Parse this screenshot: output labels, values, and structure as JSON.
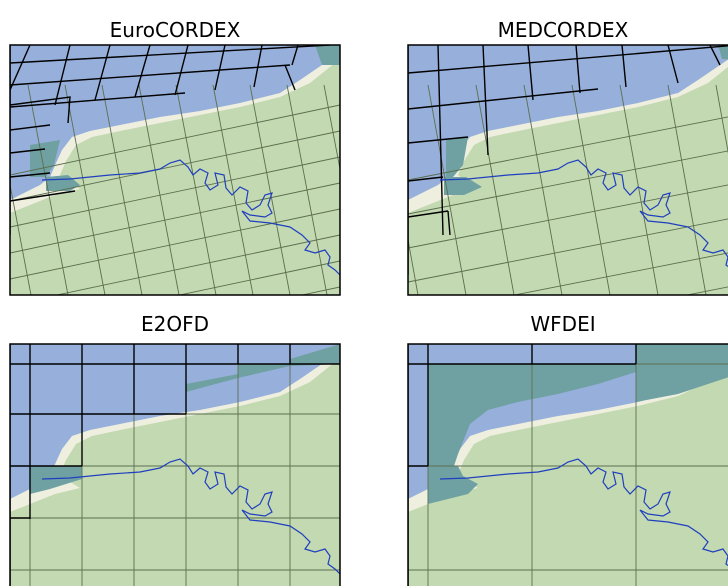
{
  "figure": {
    "panels": [
      {
        "key": "eurocordex",
        "title": "EuroCORDEX"
      },
      {
        "key": "medcordex",
        "title": "MEDCORDEX"
      },
      {
        "key": "e2ofd",
        "title": "E2OFD"
      },
      {
        "key": "wfdei",
        "title": "WFDEI"
      }
    ]
  },
  "colors": {
    "ocean": "#97b0db",
    "land_in_sea_grid": "#efefdf",
    "land": "#c3d9b1",
    "mixed_cell": "#6fa1a3",
    "grid_land": "#5b6e4f",
    "grid_ocean": "#000000",
    "river": "#1f3fbf",
    "frame": "#000000"
  }
}
